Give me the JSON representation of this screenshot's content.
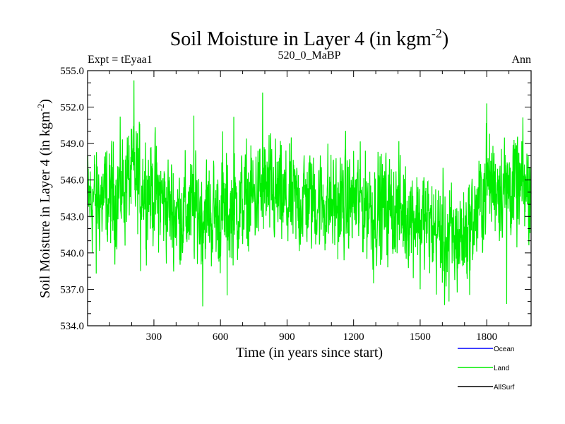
{
  "chart_data": {
    "type": "line",
    "title": "Soil Moisture in Layer 4 (in kgm",
    "title_sup": "-2",
    "title_end": ")",
    "subtitle_left": "Expt = tEyaa1",
    "subtitle_center": "520_0_MaBP",
    "subtitle_right": "Ann",
    "xlabel": "Time (in years since start)",
    "ylabel": "Soil Moisture in Layer 4 (in kgm",
    "ylabel_sup": "-2",
    "ylabel_end": ")",
    "xlim": [
      1,
      2000
    ],
    "ylim": [
      534.0,
      555.0
    ],
    "xticks": [
      300,
      600,
      900,
      1200,
      1500,
      1800
    ],
    "xtick_labels": [
      "300",
      "600",
      "900",
      "1200",
      "1500",
      "1800"
    ],
    "yticks": [
      534,
      537,
      540,
      543,
      546,
      549,
      552,
      555
    ],
    "ytick_labels": [
      "534.0",
      "537.0",
      "540.0",
      "543.0",
      "546.0",
      "549.0",
      "552.0",
      "555.0"
    ],
    "legend": [
      {
        "name": "Ocean",
        "color": "#0000ff"
      },
      {
        "name": "Land",
        "color": "#00ee00"
      },
      {
        "name": "AllSurf",
        "color": "#000000"
      }
    ],
    "series": [
      {
        "name": "Land",
        "color": "#00ee00",
        "n_points": 2000,
        "noise_amplitude": 2.0,
        "trend_knots_x": [
          1,
          100,
          200,
          300,
          400,
          500,
          600,
          700,
          800,
          900,
          1000,
          1100,
          1200,
          1300,
          1400,
          1500,
          1550,
          1600,
          1650,
          1700,
          1750,
          1800,
          1900,
          2000
        ],
        "trend_knots_y": [
          544.5,
          544.3,
          546.2,
          545.0,
          543.2,
          543.5,
          543.0,
          544.0,
          545.2,
          544.0,
          544.5,
          544.0,
          544.2,
          543.8,
          543.5,
          543.0,
          542.0,
          541.5,
          541.0,
          541.5,
          543.0,
          545.8,
          545.5,
          545.0
        ],
        "peaks": [
          [
            210,
            554.2
          ],
          [
            180,
            549.5
          ],
          [
            480,
            551.3
          ],
          [
            610,
            550.0
          ],
          [
            660,
            551.2
          ],
          [
            790,
            553.2
          ],
          [
            1800,
            552.3
          ]
        ],
        "troughs": [
          [
            40,
            538.3
          ],
          [
            240,
            538.5
          ],
          [
            520,
            535.6
          ],
          [
            630,
            536.5
          ],
          [
            1290,
            537.5
          ],
          [
            1500,
            537.0
          ],
          [
            1610,
            535.7
          ],
          [
            1630,
            536.0
          ],
          [
            1890,
            535.8
          ]
        ]
      }
    ]
  }
}
